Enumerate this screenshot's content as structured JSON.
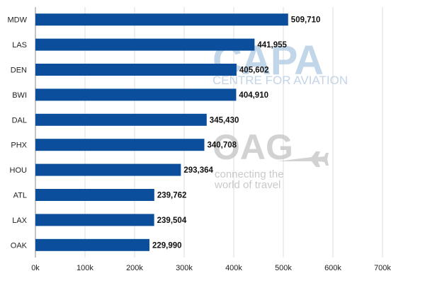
{
  "chart_data": {
    "type": "bar",
    "orientation": "horizontal",
    "title": "",
    "xlabel": "",
    "ylabel": "",
    "categories": [
      "MDW",
      "LAS",
      "DEN",
      "BWI",
      "DAL",
      "PHX",
      "HOU",
      "ATL",
      "LAX",
      "OAK"
    ],
    "values": [
      509710,
      441955,
      405602,
      404910,
      345430,
      340708,
      293364,
      239762,
      239504,
      229990
    ],
    "value_labels": [
      "509,710",
      "441,955",
      "405,602",
      "404,910",
      "345,430",
      "340,708",
      "293,364",
      "239,762",
      "239,504",
      "229,990"
    ],
    "xlim": [
      0,
      700000
    ],
    "x_ticks": [
      0,
      100000,
      200000,
      300000,
      400000,
      500000,
      600000,
      700000
    ],
    "x_tick_labels": [
      "0k",
      "100k",
      "200k",
      "300k",
      "400k",
      "500k",
      "600k",
      "700k"
    ],
    "grid": true,
    "legend": "none",
    "bar_color": "#0b4f9c"
  },
  "watermarks": {
    "capa_logo": "CAPA",
    "capa_tagline": "CENTRE FOR AVIATION",
    "oag_logo": "OAG",
    "oag_tagline_line1": "connecting the",
    "oag_tagline_line2": "world of travel",
    "capa_color": "#aec9e4",
    "oag_color": "#c7c7c7"
  }
}
